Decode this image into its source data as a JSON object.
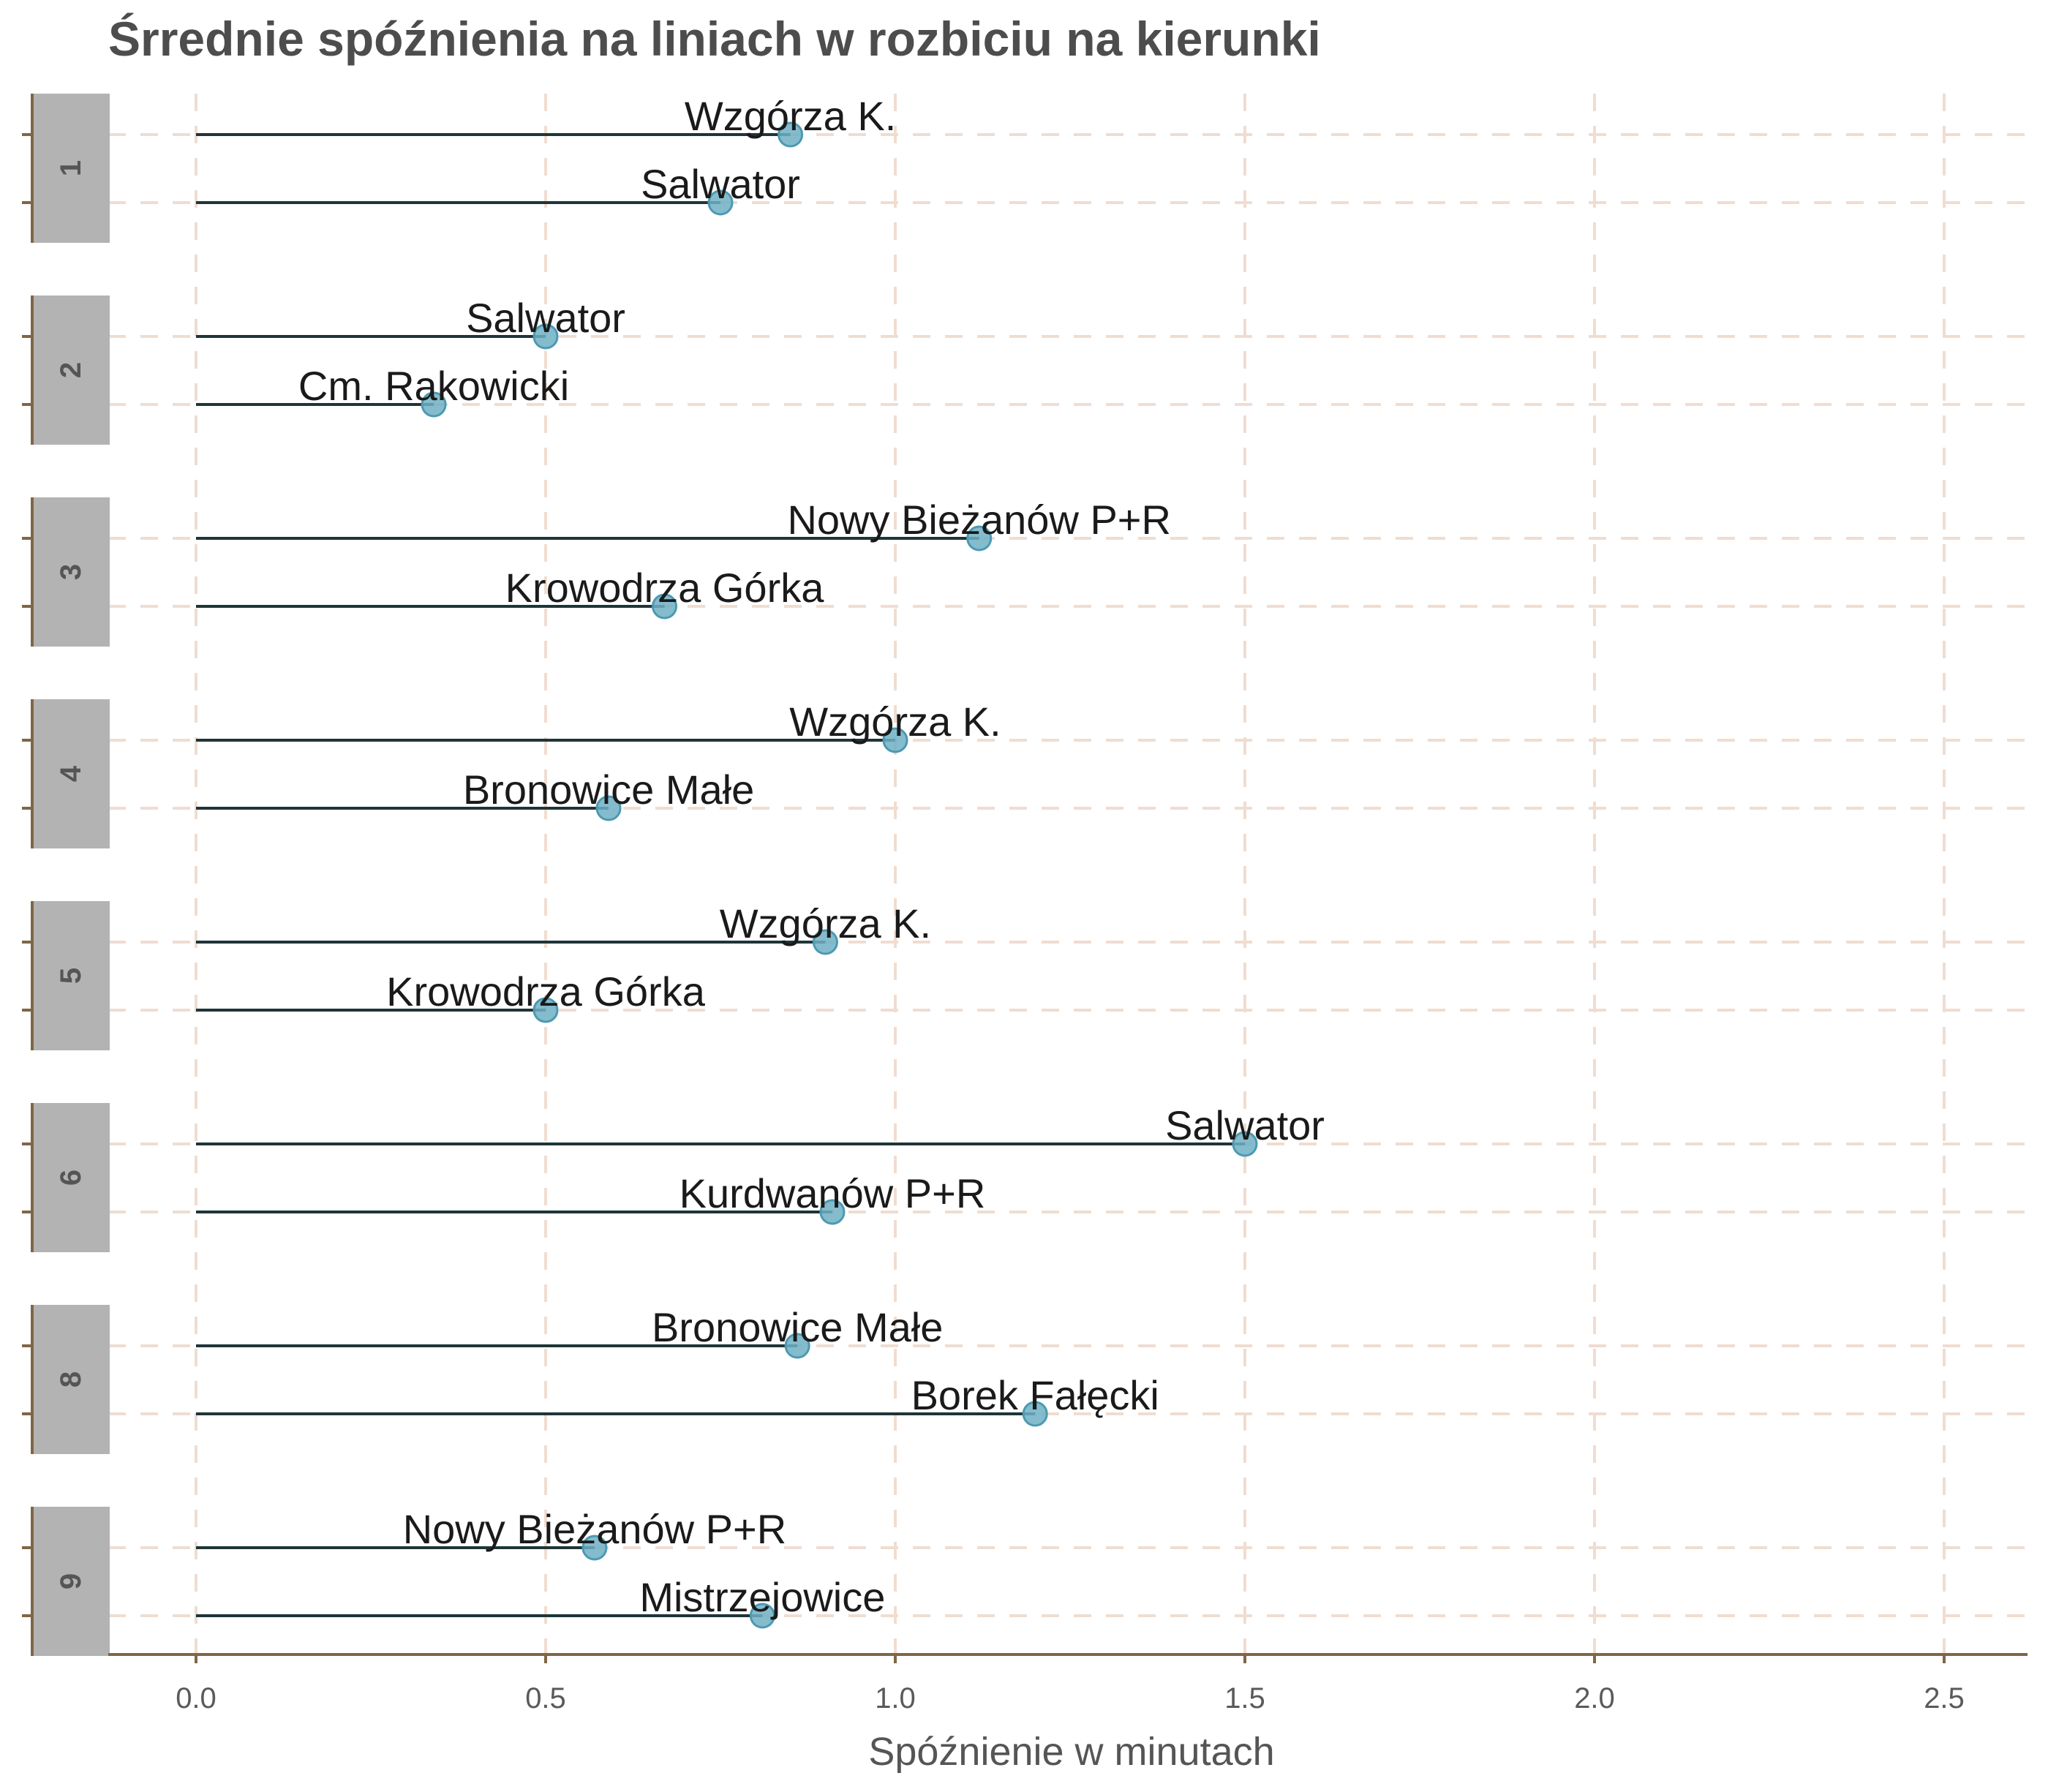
{
  "chart_data": {
    "type": "lollipop",
    "title": "Śrrednie spóźnienia na liniach w rozbiciu na kierunki",
    "xlabel": "Spóźnienie w minutach",
    "ylabel": "",
    "xlim": [
      -0.12,
      2.62
    ],
    "x_ticks": [
      0.0,
      0.5,
      1.0,
      1.5,
      2.0,
      2.5
    ],
    "x_tick_labels": [
      "0.0",
      "0.5",
      "1.0",
      "1.5",
      "2.0",
      "2.5"
    ],
    "grid": true,
    "grid_style": "dashed",
    "facets": [
      {
        "line": "1",
        "directions": [
          {
            "name": "Wzgórza K.",
            "value": 0.85
          },
          {
            "name": "Salwator",
            "value": 0.75
          }
        ]
      },
      {
        "line": "2",
        "directions": [
          {
            "name": "Salwator",
            "value": 0.5
          },
          {
            "name": "Cm. Rakowicki",
            "value": 0.34
          }
        ]
      },
      {
        "line": "3",
        "directions": [
          {
            "name": "Nowy Bieżanów P+R",
            "value": 1.12
          },
          {
            "name": "Krowodrza Górka",
            "value": 0.67
          }
        ]
      },
      {
        "line": "4",
        "directions": [
          {
            "name": "Wzgórza K.",
            "value": 1.0
          },
          {
            "name": "Bronowice Małe",
            "value": 0.59
          }
        ]
      },
      {
        "line": "5",
        "directions": [
          {
            "name": "Wzgórza K.",
            "value": 0.9
          },
          {
            "name": "Krowodrza Górka",
            "value": 0.5
          }
        ]
      },
      {
        "line": "6",
        "directions": [
          {
            "name": "Salwator",
            "value": 1.5
          },
          {
            "name": "Kurdwanów P+R",
            "value": 0.91
          }
        ]
      },
      {
        "line": "8",
        "directions": [
          {
            "name": "Bronowice Małe",
            "value": 0.86
          },
          {
            "name": "Borek Fałęcki",
            "value": 1.2
          }
        ]
      },
      {
        "line": "9",
        "directions": [
          {
            "name": "Nowy Bieżanów P+R",
            "value": 0.57
          },
          {
            "name": "Mistrzejowice",
            "value": 0.81
          }
        ]
      }
    ],
    "colors": {
      "point": "#6fb0c4",
      "point_stroke": "#4c99b1",
      "stem": "#1f3538",
      "grid": "#f0ddd0",
      "axis": "#7f6647",
      "strip_bg": "#b3b3b3"
    }
  }
}
